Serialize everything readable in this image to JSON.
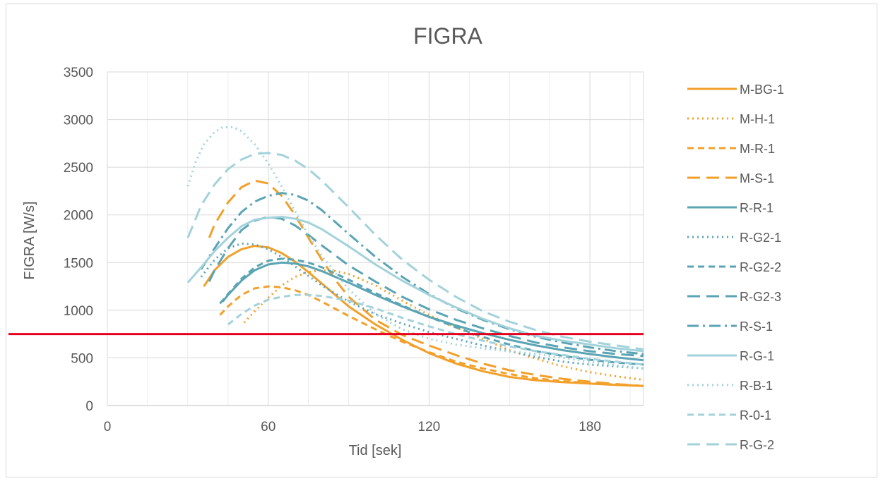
{
  "chart_data": {
    "type": "line",
    "title": "FIGRA",
    "xlabel": "Tid [sek]",
    "ylabel": "FIGRA [W/s]",
    "xlim": [
      0,
      200
    ],
    "ylim": [
      0,
      3500
    ],
    "xticks": [
      0,
      60,
      120,
      180
    ],
    "yticks": [
      0,
      500,
      1000,
      1500,
      2000,
      2500,
      3000,
      3500
    ],
    "x_minor_step": 15,
    "grid": true,
    "legend_position": "right",
    "threshold": {
      "value": 750,
      "color": "#e6001f"
    },
    "series": [
      {
        "name": "M-BG-1",
        "color": "#f2a02a",
        "dash": "solid",
        "points": [
          [
            36,
            1250
          ],
          [
            40,
            1420
          ],
          [
            45,
            1560
          ],
          [
            50,
            1640
          ],
          [
            55,
            1675
          ],
          [
            60,
            1660
          ],
          [
            65,
            1600
          ],
          [
            70,
            1510
          ],
          [
            75,
            1400
          ],
          [
            80,
            1280
          ],
          [
            85,
            1160
          ],
          [
            90,
            1040
          ],
          [
            100,
            850
          ],
          [
            110,
            690
          ],
          [
            120,
            550
          ],
          [
            130,
            440
          ],
          [
            140,
            360
          ],
          [
            150,
            300
          ],
          [
            160,
            265
          ],
          [
            170,
            245
          ],
          [
            180,
            230
          ],
          [
            190,
            215
          ],
          [
            200,
            205
          ]
        ]
      },
      {
        "name": "M-H-1",
        "color": "#f2a02a",
        "dash": "dot",
        "points": [
          [
            51,
            870
          ],
          [
            55,
            990
          ],
          [
            60,
            1130
          ],
          [
            65,
            1260
          ],
          [
            70,
            1350
          ],
          [
            75,
            1400
          ],
          [
            80,
            1420
          ],
          [
            85,
            1410
          ],
          [
            90,
            1380
          ],
          [
            100,
            1260
          ],
          [
            110,
            1100
          ],
          [
            120,
            950
          ],
          [
            130,
            820
          ],
          [
            140,
            700
          ],
          [
            150,
            580
          ],
          [
            160,
            490
          ],
          [
            170,
            410
          ],
          [
            180,
            350
          ],
          [
            190,
            305
          ],
          [
            200,
            270
          ]
        ]
      },
      {
        "name": "M-R-1",
        "color": "#f2a02a",
        "dash": "short",
        "points": [
          [
            42,
            950
          ],
          [
            45,
            1040
          ],
          [
            50,
            1160
          ],
          [
            55,
            1230
          ],
          [
            60,
            1250
          ],
          [
            65,
            1240
          ],
          [
            70,
            1210
          ],
          [
            75,
            1160
          ],
          [
            80,
            1090
          ],
          [
            90,
            940
          ],
          [
            100,
            800
          ],
          [
            110,
            670
          ],
          [
            120,
            560
          ],
          [
            130,
            460
          ],
          [
            140,
            390
          ],
          [
            150,
            330
          ],
          [
            160,
            285
          ],
          [
            170,
            255
          ],
          [
            180,
            235
          ],
          [
            190,
            220
          ],
          [
            200,
            205
          ]
        ]
      },
      {
        "name": "M-S-1",
        "color": "#f2a02a",
        "dash": "long",
        "points": [
          [
            38,
            1760
          ],
          [
            40,
            1900
          ],
          [
            45,
            2130
          ],
          [
            50,
            2290
          ],
          [
            55,
            2360
          ],
          [
            60,
            2330
          ],
          [
            65,
            2200
          ],
          [
            70,
            2000
          ],
          [
            75,
            1760
          ],
          [
            80,
            1530
          ],
          [
            85,
            1320
          ],
          [
            90,
            1140
          ],
          [
            100,
            900
          ],
          [
            110,
            740
          ],
          [
            120,
            630
          ],
          [
            130,
            530
          ],
          [
            140,
            440
          ],
          [
            150,
            370
          ],
          [
            160,
            320
          ],
          [
            170,
            280
          ],
          [
            180,
            250
          ],
          [
            190,
            225
          ],
          [
            200,
            205
          ]
        ]
      },
      {
        "name": "R-R-1",
        "color": "#5aa4b4",
        "dash": "solid",
        "points": [
          [
            43,
            1090
          ],
          [
            45,
            1160
          ],
          [
            50,
            1310
          ],
          [
            55,
            1420
          ],
          [
            60,
            1480
          ],
          [
            65,
            1500
          ],
          [
            70,
            1490
          ],
          [
            75,
            1460
          ],
          [
            80,
            1410
          ],
          [
            90,
            1290
          ],
          [
            100,
            1160
          ],
          [
            110,
            1040
          ],
          [
            120,
            930
          ],
          [
            130,
            840
          ],
          [
            140,
            760
          ],
          [
            150,
            690
          ],
          [
            160,
            630
          ],
          [
            170,
            580
          ],
          [
            180,
            540
          ],
          [
            190,
            505
          ],
          [
            200,
            475
          ]
        ]
      },
      {
        "name": "R-G2-1",
        "color": "#5aa4b4",
        "dash": "dot",
        "points": [
          [
            35,
            1350
          ],
          [
            40,
            1530
          ],
          [
            45,
            1650
          ],
          [
            50,
            1700
          ],
          [
            55,
            1690
          ],
          [
            60,
            1640
          ],
          [
            65,
            1560
          ],
          [
            70,
            1460
          ],
          [
            80,
            1260
          ],
          [
            90,
            1090
          ],
          [
            100,
            960
          ],
          [
            110,
            860
          ],
          [
            120,
            770
          ],
          [
            130,
            700
          ],
          [
            140,
            630
          ],
          [
            150,
            570
          ],
          [
            160,
            510
          ],
          [
            170,
            460
          ],
          [
            180,
            430
          ],
          [
            190,
            410
          ],
          [
            200,
            390
          ]
        ]
      },
      {
        "name": "R-G2-2",
        "color": "#5aa4b4",
        "dash": "short",
        "points": [
          [
            42,
            1070
          ],
          [
            45,
            1170
          ],
          [
            50,
            1330
          ],
          [
            55,
            1450
          ],
          [
            60,
            1520
          ],
          [
            65,
            1540
          ],
          [
            70,
            1530
          ],
          [
            75,
            1500
          ],
          [
            80,
            1450
          ],
          [
            90,
            1320
          ],
          [
            100,
            1180
          ],
          [
            110,
            1050
          ],
          [
            120,
            930
          ],
          [
            130,
            820
          ],
          [
            140,
            720
          ],
          [
            150,
            640
          ],
          [
            160,
            570
          ],
          [
            170,
            520
          ],
          [
            180,
            480
          ],
          [
            190,
            450
          ],
          [
            200,
            430
          ]
        ]
      },
      {
        "name": "R-G2-3",
        "color": "#5aa4b4",
        "dash": "long",
        "points": [
          [
            38,
            1300
          ],
          [
            40,
            1420
          ],
          [
            45,
            1650
          ],
          [
            50,
            1840
          ],
          [
            55,
            1940
          ],
          [
            60,
            1980
          ],
          [
            65,
            1960
          ],
          [
            70,
            1890
          ],
          [
            75,
            1790
          ],
          [
            80,
            1680
          ],
          [
            90,
            1470
          ],
          [
            100,
            1300
          ],
          [
            110,
            1140
          ],
          [
            120,
            1010
          ],
          [
            130,
            900
          ],
          [
            140,
            810
          ],
          [
            150,
            730
          ],
          [
            160,
            660
          ],
          [
            170,
            610
          ],
          [
            180,
            570
          ],
          [
            190,
            540
          ],
          [
            200,
            520
          ]
        ]
      },
      {
        "name": "R-S-1",
        "color": "#5aa4b4",
        "dash": "dashdot",
        "points": [
          [
            35,
            1430
          ],
          [
            40,
            1650
          ],
          [
            45,
            1860
          ],
          [
            50,
            2030
          ],
          [
            55,
            2140
          ],
          [
            60,
            2200
          ],
          [
            65,
            2230
          ],
          [
            70,
            2210
          ],
          [
            75,
            2150
          ],
          [
            80,
            2050
          ],
          [
            90,
            1800
          ],
          [
            100,
            1560
          ],
          [
            110,
            1350
          ],
          [
            120,
            1170
          ],
          [
            130,
            1020
          ],
          [
            140,
            900
          ],
          [
            150,
            800
          ],
          [
            160,
            720
          ],
          [
            170,
            660
          ],
          [
            180,
            610
          ],
          [
            190,
            570
          ],
          [
            200,
            540
          ]
        ]
      },
      {
        "name": "R-G-1",
        "color": "#a3d2db",
        "dash": "solid",
        "points": [
          [
            30,
            1290
          ],
          [
            35,
            1450
          ],
          [
            40,
            1620
          ],
          [
            45,
            1760
          ],
          [
            50,
            1880
          ],
          [
            55,
            1950
          ],
          [
            60,
            1970
          ],
          [
            65,
            1980
          ],
          [
            70,
            1960
          ],
          [
            75,
            1920
          ],
          [
            80,
            1850
          ],
          [
            90,
            1670
          ],
          [
            100,
            1480
          ],
          [
            110,
            1310
          ],
          [
            120,
            1160
          ],
          [
            130,
            1030
          ],
          [
            140,
            910
          ],
          [
            150,
            810
          ],
          [
            160,
            730
          ],
          [
            170,
            680
          ],
          [
            180,
            640
          ],
          [
            190,
            600
          ],
          [
            200,
            570
          ]
        ]
      },
      {
        "name": "R-B-1",
        "color": "#a3d2db",
        "dash": "dot",
        "points": [
          [
            30,
            2300
          ],
          [
            33,
            2560
          ],
          [
            36,
            2740
          ],
          [
            40,
            2870
          ],
          [
            43,
            2920
          ],
          [
            47,
            2920
          ],
          [
            50,
            2880
          ],
          [
            55,
            2740
          ],
          [
            60,
            2540
          ],
          [
            65,
            2300
          ],
          [
            70,
            2040
          ],
          [
            75,
            1790
          ],
          [
            80,
            1570
          ],
          [
            90,
            1220
          ],
          [
            100,
            960
          ],
          [
            110,
            800
          ],
          [
            120,
            700
          ],
          [
            130,
            640
          ],
          [
            140,
            600
          ],
          [
            150,
            570
          ],
          [
            160,
            540
          ],
          [
            170,
            500
          ],
          [
            180,
            460
          ],
          [
            190,
            420
          ],
          [
            200,
            390
          ]
        ]
      },
      {
        "name": "R-0-1",
        "color": "#a3d2db",
        "dash": "short",
        "points": [
          [
            45,
            850
          ],
          [
            50,
            960
          ],
          [
            55,
            1050
          ],
          [
            60,
            1110
          ],
          [
            65,
            1140
          ],
          [
            70,
            1160
          ],
          [
            75,
            1160
          ],
          [
            80,
            1150
          ],
          [
            90,
            1100
          ],
          [
            100,
            1020
          ],
          [
            110,
            920
          ],
          [
            120,
            830
          ],
          [
            130,
            750
          ],
          [
            140,
            680
          ],
          [
            150,
            620
          ],
          [
            160,
            570
          ],
          [
            170,
            530
          ],
          [
            180,
            490
          ],
          [
            190,
            460
          ],
          [
            200,
            430
          ]
        ]
      },
      {
        "name": "R-G-2",
        "color": "#a3d2db",
        "dash": "long",
        "points": [
          [
            30,
            1760
          ],
          [
            35,
            2100
          ],
          [
            40,
            2320
          ],
          [
            45,
            2480
          ],
          [
            50,
            2580
          ],
          [
            55,
            2640
          ],
          [
            60,
            2650
          ],
          [
            65,
            2630
          ],
          [
            70,
            2570
          ],
          [
            75,
            2480
          ],
          [
            80,
            2360
          ],
          [
            90,
            2080
          ],
          [
            100,
            1790
          ],
          [
            110,
            1530
          ],
          [
            120,
            1320
          ],
          [
            130,
            1140
          ],
          [
            140,
            990
          ],
          [
            150,
            880
          ],
          [
            160,
            790
          ],
          [
            170,
            720
          ],
          [
            180,
            670
          ],
          [
            190,
            630
          ],
          [
            200,
            590
          ]
        ]
      }
    ]
  }
}
